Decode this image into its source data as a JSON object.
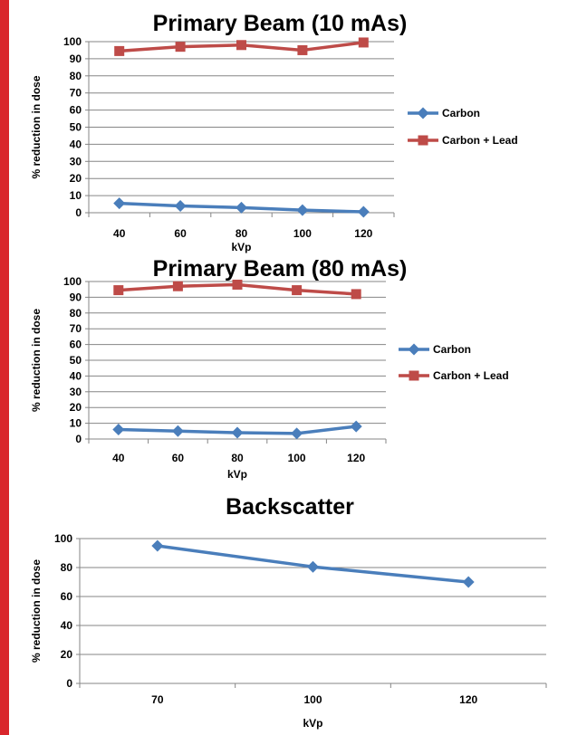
{
  "colors": {
    "frame": "#d9262c",
    "carbon": "#4a7ebb",
    "carbon_lead": "#be4b48",
    "axis": "#868686",
    "grid": "#868686"
  },
  "chart_data": [
    {
      "type": "line",
      "title": "Primary Beam (10 mAs)",
      "xlabel": "kVp",
      "ylabel": "% reduction in dose",
      "categories": [
        "40",
        "60",
        "80",
        "100",
        "120"
      ],
      "ylim": [
        0,
        100
      ],
      "yticks": [
        "0",
        "10",
        "20",
        "30",
        "40",
        "50",
        "60",
        "70",
        "80",
        "90",
        "100"
      ],
      "grid": true,
      "legend": "right",
      "series": [
        {
          "name": "Carbon",
          "marker": "diamond",
          "values": [
            5.5,
            4,
            3,
            1.5,
            0.5
          ]
        },
        {
          "name": "Carbon + Lead",
          "marker": "square",
          "values": [
            94.5,
            97,
            98,
            95,
            99.5
          ]
        }
      ]
    },
    {
      "type": "line",
      "title": "Primary Beam (80 mAs)",
      "xlabel": "kVp",
      "ylabel": "% reduction in dose",
      "categories": [
        "40",
        "60",
        "80",
        "100",
        "120"
      ],
      "ylim": [
        0,
        100
      ],
      "yticks": [
        "0",
        "10",
        "20",
        "30",
        "40",
        "50",
        "60",
        "70",
        "80",
        "90",
        "100"
      ],
      "grid": true,
      "legend": "right",
      "series": [
        {
          "name": "Carbon",
          "marker": "diamond",
          "values": [
            6,
            5,
            4,
            3.5,
            8
          ]
        },
        {
          "name": "Carbon + Lead",
          "marker": "square",
          "values": [
            94.5,
            97,
            98,
            94.5,
            92
          ]
        }
      ]
    },
    {
      "type": "line",
      "title": "Backscatter",
      "xlabel": "kVp",
      "ylabel": "% reduction in dose",
      "categories": [
        "70",
        "100",
        "120"
      ],
      "ylim": [
        0,
        100
      ],
      "yticks": [
        "0",
        "20",
        "40",
        "60",
        "80",
        "100"
      ],
      "grid": true,
      "legend": "none",
      "series": [
        {
          "marker": "diamond",
          "values": [
            95,
            80.5,
            70
          ]
        }
      ]
    }
  ]
}
